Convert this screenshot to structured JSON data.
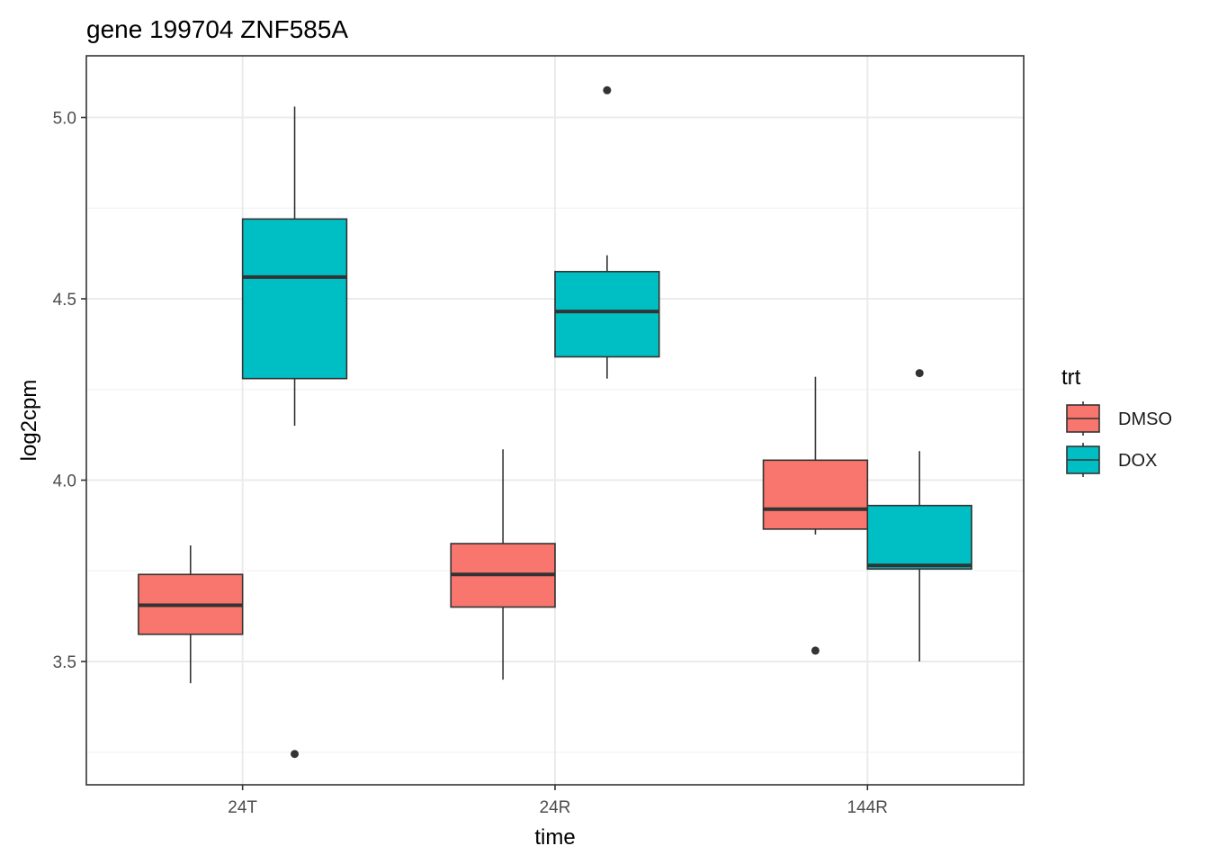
{
  "chart_data": {
    "type": "boxplot",
    "title": "gene 199704 ZNF585A",
    "xlabel": "time",
    "ylabel": "log2cpm",
    "categories": [
      "24T",
      "24R",
      "144R"
    ],
    "ylim": [
      3.16,
      5.17
    ],
    "yticks": [
      3.5,
      4.0,
      4.5,
      5.0
    ],
    "ytick_labels": [
      "3.5",
      "4.0",
      "4.5",
      "5.0"
    ],
    "grid": true,
    "legend": {
      "title": "trt",
      "position": "right",
      "entries": [
        {
          "name": "DMSO",
          "color": "#F8766D"
        },
        {
          "name": "DOX",
          "color": "#00BFC4"
        }
      ]
    },
    "series": [
      {
        "name": "DMSO",
        "color": "#F8766D",
        "boxes": [
          {
            "category": "24T",
            "whisker_low": 3.44,
            "q1": 3.575,
            "median": 3.655,
            "q3": 3.74,
            "whisker_high": 3.82,
            "outliers": []
          },
          {
            "category": "24R",
            "whisker_low": 3.45,
            "q1": 3.65,
            "median": 3.74,
            "q3": 3.825,
            "whisker_high": 4.085,
            "outliers": []
          },
          {
            "category": "144R",
            "whisker_low": 3.85,
            "q1": 3.865,
            "median": 3.92,
            "q3": 4.055,
            "whisker_high": 4.285,
            "outliers": [
              3.53
            ]
          }
        ]
      },
      {
        "name": "DOX",
        "color": "#00BFC4",
        "boxes": [
          {
            "category": "24T",
            "whisker_low": 4.15,
            "q1": 4.28,
            "median": 4.56,
            "q3": 4.72,
            "whisker_high": 5.03,
            "outliers": [
              3.245
            ]
          },
          {
            "category": "24R",
            "whisker_low": 4.28,
            "q1": 4.34,
            "median": 4.465,
            "q3": 4.575,
            "whisker_high": 4.62,
            "outliers": [
              5.075
            ]
          },
          {
            "category": "144R",
            "whisker_low": 3.5,
            "q1": 3.755,
            "median": 3.765,
            "q3": 3.93,
            "whisker_high": 4.08,
            "outliers": [
              4.295
            ]
          }
        ]
      }
    ]
  }
}
